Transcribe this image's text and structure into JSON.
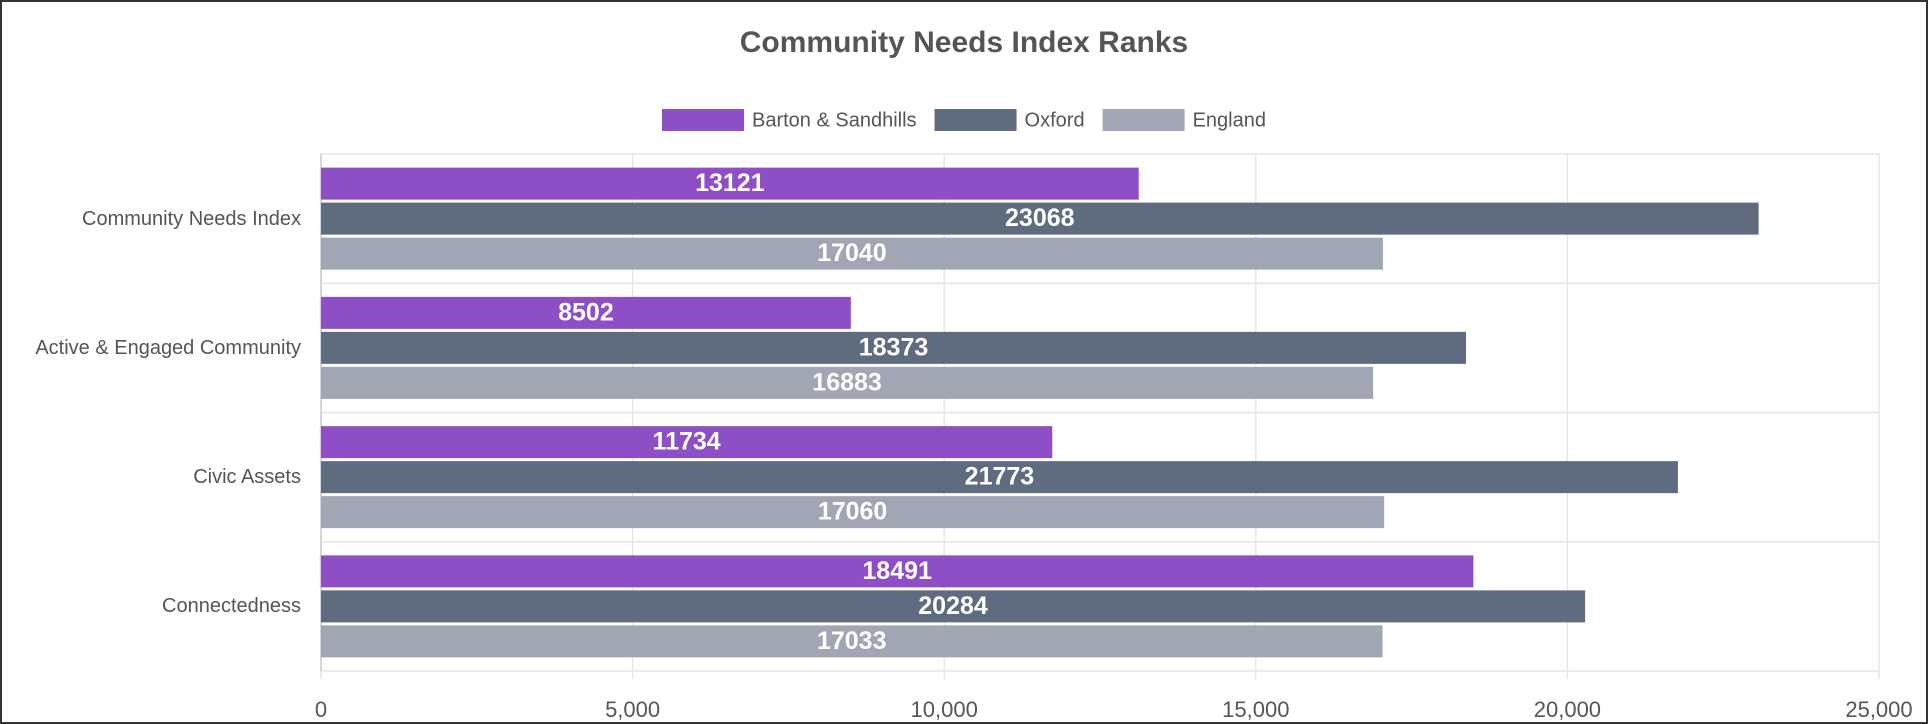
{
  "chart_data": {
    "type": "bar",
    "orientation": "horizontal",
    "title": "Community Needs Index Ranks",
    "categories": [
      "Community Needs Index",
      "Active & Engaged Community",
      "Civic Assets",
      "Connectedness"
    ],
    "series": [
      {
        "name": "Barton & Sandhills",
        "color": "#8e4ec6",
        "values": [
          13121,
          8502,
          11734,
          18491
        ]
      },
      {
        "name": "Oxford",
        "color": "#5f6b7e",
        "values": [
          23068,
          18373,
          21773,
          20284
        ]
      },
      {
        "name": "England",
        "color": "#a0a6b3",
        "values": [
          17040,
          16883,
          17060,
          17033
        ]
      }
    ],
    "xlim": [
      0,
      25000
    ],
    "xticks": [
      0,
      {
        "value": 5000,
        "label": "5,000"
      },
      {
        "value": 10000,
        "label": "10,000"
      },
      {
        "value": 15000,
        "label": "15,000"
      },
      {
        "value": 20000,
        "label": "20,000"
      },
      {
        "value": 25000,
        "label": "25,000"
      }
    ],
    "grid": true,
    "legend": "top",
    "value_labels_position": "center"
  }
}
